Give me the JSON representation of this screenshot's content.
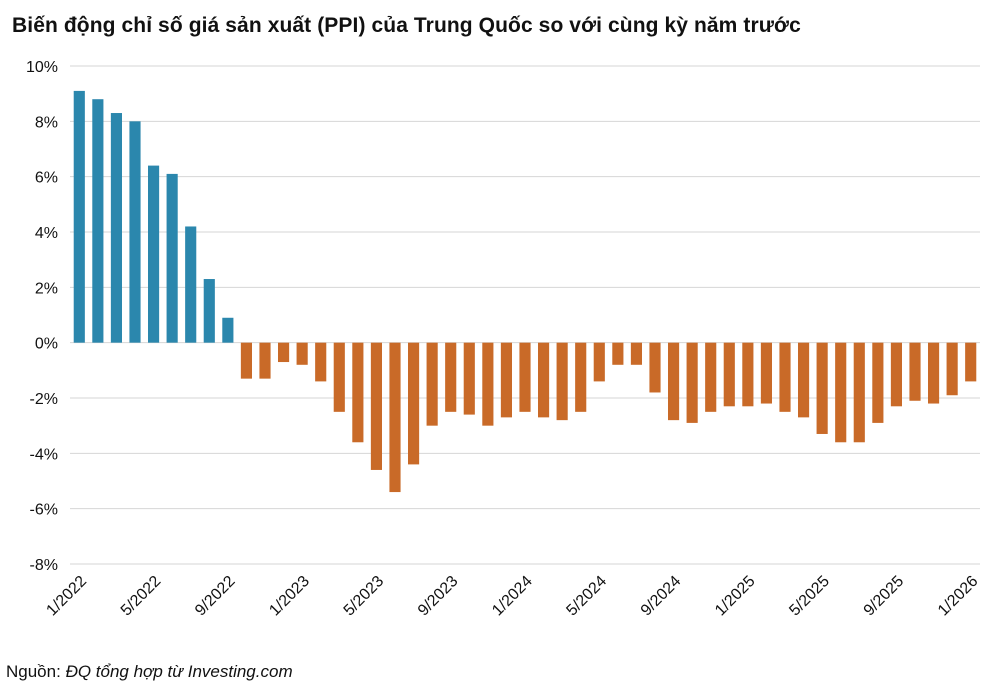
{
  "chart_data": {
    "type": "bar",
    "title": "Biến động chỉ số giá sản xuất (PPI) của Trung Quốc so với cùng kỳ năm trước",
    "xlabel": "",
    "ylabel": "",
    "ylim": [
      -8,
      10
    ],
    "yticks": [
      "10%",
      "8%",
      "6%",
      "4%",
      "2%",
      "0%",
      "-2%",
      "-4%",
      "-6%",
      "-8%"
    ],
    "ytick_values": [
      10,
      8,
      6,
      4,
      2,
      0,
      -2,
      -4,
      -6,
      -8
    ],
    "categories": [
      "1/2022",
      "2/2022",
      "3/2022",
      "4/2022",
      "5/2022",
      "6/2022",
      "7/2022",
      "8/2022",
      "9/2022",
      "10/2022",
      "11/2022",
      "12/2022",
      "1/2023",
      "2/2023",
      "3/2023",
      "4/2023",
      "5/2023",
      "6/2023",
      "7/2023",
      "8/2023",
      "9/2023",
      "10/2023",
      "11/2023",
      "12/2023",
      "1/2024",
      "2/2024",
      "3/2024",
      "4/2024",
      "5/2024",
      "6/2024",
      "7/2024",
      "8/2024",
      "9/2024",
      "10/2024",
      "11/2024",
      "12/2024",
      "1/2025",
      "2/2025",
      "3/2025",
      "4/2025",
      "5/2025",
      "6/2025",
      "7/2025",
      "8/2025",
      "9/2025",
      "10/2025",
      "11/2025",
      "12/2025",
      "1/2026"
    ],
    "values": [
      9.1,
      8.8,
      8.3,
      8.0,
      6.4,
      6.1,
      4.2,
      2.3,
      0.9,
      -1.3,
      -1.3,
      -0.7,
      -0.8,
      -1.4,
      -2.5,
      -3.6,
      -4.6,
      -5.4,
      -4.4,
      -3.0,
      -2.5,
      -2.6,
      -3.0,
      -2.7,
      -2.5,
      -2.7,
      -2.8,
      -2.5,
      -1.4,
      -0.8,
      -0.8,
      -1.8,
      -2.8,
      -2.9,
      -2.5,
      -2.3,
      -2.3,
      -2.2,
      -2.5,
      -2.7,
      -3.3,
      -3.6,
      -3.6,
      -2.9,
      -2.3,
      -2.1,
      -2.2,
      -1.9,
      -1.4
    ],
    "xtick_labels": [
      "1/2022",
      "5/2022",
      "9/2022",
      "1/2023",
      "5/2023",
      "9/2023",
      "1/2024",
      "5/2024",
      "9/2024",
      "1/2025",
      "5/2025",
      "9/2025",
      "1/2026"
    ],
    "xtick_indices": [
      0,
      4,
      8,
      12,
      16,
      20,
      24,
      28,
      32,
      36,
      40,
      44,
      48
    ],
    "colors": {
      "positive": "#2b87ad",
      "negative": "#c96a28",
      "grid": "#d6d6d6"
    },
    "grid": true,
    "legend": "none"
  },
  "source": {
    "label": "Nguồn:",
    "text": "ĐQ tổng hợp từ Investing.com"
  }
}
